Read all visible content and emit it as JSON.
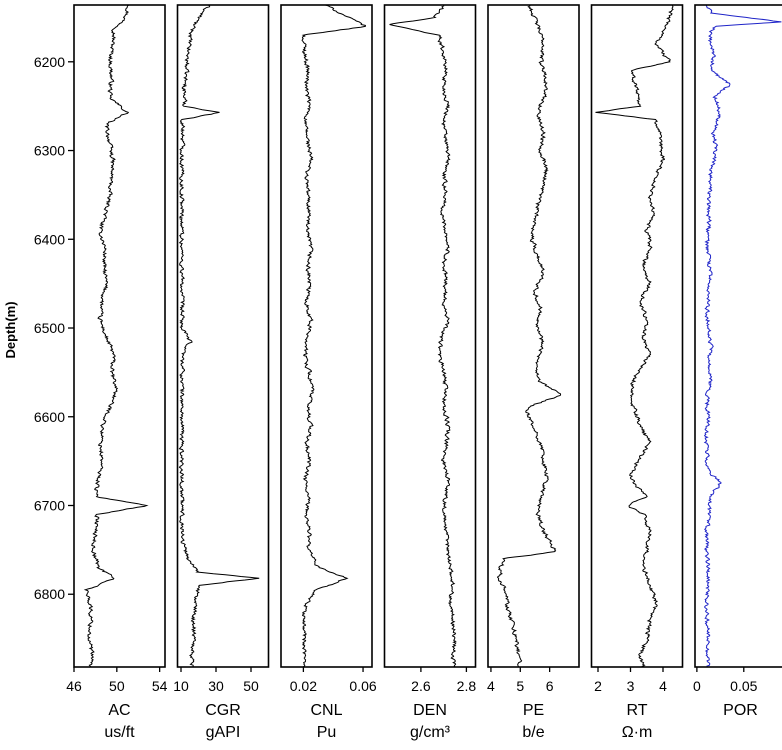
{
  "chart_data": {
    "type": "line",
    "depth_axis": {
      "label": "Depth(m)",
      "range": [
        6136,
        6882
      ],
      "ticks": [
        6200,
        6300,
        6400,
        6500,
        6600,
        6700,
        6800
      ],
      "tick_labels": [
        "6200",
        "6300",
        "6400",
        "6500",
        "6600",
        "6700",
        "6800"
      ],
      "inverted": true
    },
    "grid": false,
    "legend": "none",
    "tracks": [
      {
        "name": "AC",
        "unit": "us/ft",
        "color": "#000000",
        "range": [
          46,
          54.5
        ],
        "ticks": [
          46,
          50,
          54
        ],
        "tick_labels": [
          "46",
          "50",
          "54"
        ],
        "depth": [
          6136,
          6150,
          6165,
          6180,
          6200,
          6220,
          6240,
          6257,
          6270,
          6290,
          6310,
          6330,
          6350,
          6370,
          6390,
          6410,
          6430,
          6450,
          6470,
          6490,
          6510,
          6530,
          6550,
          6570,
          6590,
          6610,
          6630,
          6650,
          6670,
          6690,
          6700,
          6710,
          6730,
          6750,
          6770,
          6782,
          6795,
          6810,
          6830,
          6850,
          6870,
          6882
        ],
        "values": [
          51.2,
          50.8,
          49.8,
          49.6,
          49.4,
          49.5,
          49.3,
          51.0,
          49.0,
          49.3,
          49.6,
          49.5,
          49.3,
          49.0,
          48.4,
          48.9,
          48.8,
          49.0,
          48.6,
          48.4,
          49.0,
          49.7,
          49.5,
          50.0,
          49.3,
          48.7,
          48.5,
          48.6,
          48.3,
          48.0,
          53.0,
          48.2,
          48.0,
          47.8,
          48.3,
          49.8,
          47.2,
          47.5,
          47.6,
          47.4,
          47.7,
          47.5
        ]
      },
      {
        "name": "CGR",
        "unit": "gAPI",
        "color": "#000000",
        "range": [
          8,
          60
        ],
        "ticks": [
          10,
          30,
          50
        ],
        "tick_labels": [
          "10",
          "30",
          "50"
        ],
        "depth": [
          6136,
          6145,
          6160,
          6175,
          6190,
          6210,
          6230,
          6250,
          6257,
          6265,
          6290,
          6320,
          6360,
          6400,
          6450,
          6500,
          6515,
          6530,
          6580,
          6650,
          6700,
          6740,
          6760,
          6775,
          6782,
          6790,
          6810,
          6830,
          6850,
          6870,
          6882
        ],
        "values": [
          26,
          22,
          17,
          15,
          14,
          13,
          12,
          12,
          32,
          11,
          11,
          10.5,
          10.5,
          10.5,
          10.5,
          10.5,
          15,
          11,
          10.5,
          10.5,
          10.5,
          11,
          14,
          20,
          55,
          20,
          18,
          17,
          18,
          16,
          17
        ]
      },
      {
        "name": "CNL",
        "unit": "Pu",
        "color": "#000000",
        "range": [
          0.005,
          0.066
        ],
        "ticks": [
          0.02,
          0.06
        ],
        "tick_labels": [
          "0.02",
          "0.06"
        ],
        "depth": [
          6136,
          6150,
          6160,
          6170,
          6190,
          6210,
          6230,
          6250,
          6270,
          6290,
          6310,
          6330,
          6350,
          6370,
          6390,
          6410,
          6430,
          6450,
          6470,
          6490,
          6510,
          6530,
          6550,
          6570,
          6590,
          6610,
          6630,
          6650,
          6670,
          6690,
          6710,
          6730,
          6750,
          6770,
          6782,
          6795,
          6810,
          6830,
          6850,
          6870,
          6882
        ],
        "values": [
          0.035,
          0.05,
          0.062,
          0.02,
          0.021,
          0.023,
          0.022,
          0.024,
          0.021,
          0.023,
          0.025,
          0.022,
          0.023,
          0.024,
          0.022,
          0.025,
          0.023,
          0.024,
          0.022,
          0.025,
          0.023,
          0.021,
          0.024,
          0.026,
          0.023,
          0.025,
          0.022,
          0.024,
          0.021,
          0.023,
          0.022,
          0.024,
          0.023,
          0.03,
          0.05,
          0.028,
          0.022,
          0.02,
          0.021,
          0.02,
          0.021
        ]
      },
      {
        "name": "DEN",
        "unit": "g/cm³",
        "color": "#000000",
        "range": [
          2.44,
          2.84
        ],
        "ticks": [
          2.6,
          2.8
        ],
        "tick_labels": [
          "2.6",
          "2.8"
        ],
        "depth": [
          6136,
          6150,
          6158,
          6170,
          6190,
          6210,
          6230,
          6250,
          6270,
          6290,
          6310,
          6330,
          6350,
          6370,
          6390,
          6410,
          6430,
          6450,
          6470,
          6490,
          6510,
          6530,
          6550,
          6570,
          6590,
          6610,
          6630,
          6650,
          6670,
          6690,
          6710,
          6730,
          6750,
          6770,
          6790,
          6810,
          6830,
          6850,
          6870,
          6882
        ],
        "values": [
          2.7,
          2.66,
          2.46,
          2.68,
          2.7,
          2.71,
          2.7,
          2.72,
          2.7,
          2.71,
          2.72,
          2.7,
          2.71,
          2.69,
          2.71,
          2.72,
          2.7,
          2.71,
          2.7,
          2.72,
          2.69,
          2.68,
          2.7,
          2.71,
          2.7,
          2.72,
          2.71,
          2.7,
          2.72,
          2.71,
          2.7,
          2.71,
          2.72,
          2.73,
          2.74,
          2.73,
          2.74,
          2.75,
          2.74,
          2.75
        ]
      },
      {
        "name": "PE",
        "unit": "b/e",
        "color": "#000000",
        "range": [
          3.9,
          7.0
        ],
        "ticks": [
          4,
          5,
          6
        ],
        "tick_labels": [
          "4",
          "5",
          "6"
        ],
        "depth": [
          6136,
          6160,
          6180,
          6200,
          6220,
          6240,
          6260,
          6280,
          6300,
          6320,
          6340,
          6360,
          6380,
          6400,
          6420,
          6440,
          6460,
          6480,
          6500,
          6520,
          6540,
          6560,
          6575,
          6590,
          6610,
          6630,
          6650,
          6670,
          6690,
          6710,
          6730,
          6752,
          6760,
          6780,
          6800,
          6820,
          6840,
          6860,
          6882
        ],
        "values": [
          5.3,
          5.6,
          5.8,
          5.7,
          5.9,
          5.8,
          5.6,
          5.8,
          5.7,
          5.9,
          5.8,
          5.6,
          5.5,
          5.4,
          5.6,
          5.8,
          5.5,
          5.7,
          5.6,
          5.8,
          5.5,
          5.6,
          6.4,
          5.2,
          5.4,
          5.7,
          5.8,
          5.9,
          5.7,
          5.6,
          5.8,
          6.2,
          4.4,
          4.3,
          4.5,
          4.6,
          4.8,
          4.9,
          5.0
        ]
      },
      {
        "name": "RT",
        "unit": "Ω·m",
        "color": "#000000",
        "range": [
          1.8,
          4.6
        ],
        "ticks": [
          2,
          3,
          4
        ],
        "tick_labels": [
          "2",
          "3",
          "4"
        ],
        "depth": [
          6136,
          6160,
          6180,
          6200,
          6210,
          6230,
          6250,
          6257,
          6265,
          6290,
          6310,
          6330,
          6350,
          6370,
          6390,
          6410,
          6430,
          6450,
          6470,
          6490,
          6510,
          6530,
          6550,
          6570,
          6590,
          6610,
          6630,
          6650,
          6670,
          6690,
          6700,
          6710,
          6730,
          6750,
          6770,
          6790,
          6810,
          6830,
          6850,
          6870,
          6882
        ],
        "values": [
          4.3,
          4.1,
          3.8,
          4.2,
          3.0,
          3.2,
          3.3,
          1.9,
          3.8,
          3.9,
          4.0,
          3.8,
          3.6,
          3.7,
          3.5,
          3.6,
          3.4,
          3.6,
          3.3,
          3.5,
          3.4,
          3.6,
          3.2,
          3.0,
          3.1,
          3.3,
          3.6,
          3.2,
          3.0,
          3.5,
          2.9,
          3.4,
          3.6,
          3.5,
          3.4,
          3.6,
          3.8,
          3.6,
          3.5,
          3.3,
          3.4
        ]
      },
      {
        "name": "POR",
        "unit": "",
        "color": "#1f24c8",
        "range": [
          -0.002,
          0.095
        ],
        "ticks": [
          0,
          0.05
        ],
        "tick_labels": [
          "0",
          "0.05"
        ],
        "depth": [
          6136,
          6145,
          6155,
          6160,
          6170,
          6190,
          6210,
          6225,
          6240,
          6260,
          6280,
          6300,
          6320,
          6340,
          6360,
          6380,
          6400,
          6420,
          6440,
          6460,
          6480,
          6500,
          6520,
          6540,
          6560,
          6580,
          6600,
          6620,
          6640,
          6660,
          6675,
          6690,
          6710,
          6730,
          6750,
          6770,
          6790,
          6810,
          6830,
          6850,
          6870,
          6882
        ],
        "values": [
          0.01,
          0.015,
          0.09,
          0.02,
          0.012,
          0.018,
          0.015,
          0.035,
          0.02,
          0.025,
          0.018,
          0.02,
          0.016,
          0.014,
          0.012,
          0.013,
          0.011,
          0.012,
          0.014,
          0.012,
          0.011,
          0.013,
          0.015,
          0.012,
          0.014,
          0.011,
          0.012,
          0.01,
          0.011,
          0.012,
          0.025,
          0.013,
          0.012,
          0.011,
          0.01,
          0.012,
          0.011,
          0.01,
          0.011,
          0.012,
          0.011,
          0.012
        ]
      }
    ]
  }
}
